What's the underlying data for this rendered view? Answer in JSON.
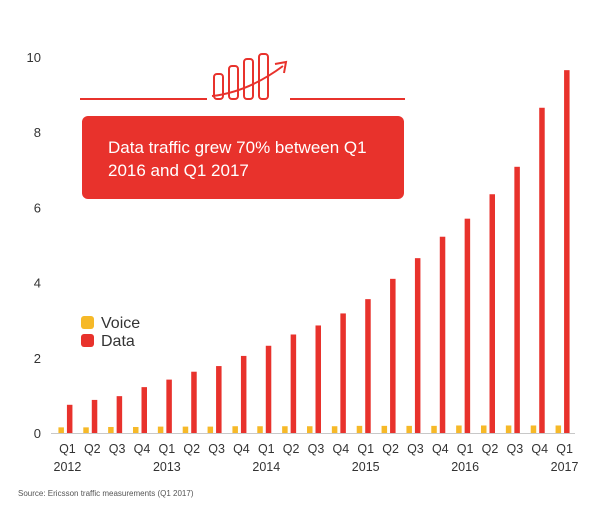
{
  "chart_data": {
    "type": "bar",
    "title": "",
    "xlabel": "",
    "ylabel": "",
    "ylim": [
      0,
      10
    ],
    "yticks": [
      0,
      2,
      4,
      6,
      8,
      10
    ],
    "categories": [
      "Q1",
      "Q2",
      "Q3",
      "Q4",
      "Q1",
      "Q2",
      "Q3",
      "Q4",
      "Q1",
      "Q2",
      "Q3",
      "Q4",
      "Q1",
      "Q2",
      "Q3",
      "Q4",
      "Q1",
      "Q2",
      "Q3",
      "Q4",
      "Q1"
    ],
    "year_labels": [
      {
        "index": 0,
        "label": "2012"
      },
      {
        "index": 4,
        "label": "2013"
      },
      {
        "index": 8,
        "label": "2014"
      },
      {
        "index": 12,
        "label": "2015"
      },
      {
        "index": 16,
        "label": "2016"
      },
      {
        "index": 20,
        "label": "2017"
      }
    ],
    "series": [
      {
        "name": "Voice",
        "color": "#f6b928",
        "values": [
          0.15,
          0.15,
          0.16,
          0.16,
          0.17,
          0.17,
          0.17,
          0.18,
          0.18,
          0.18,
          0.18,
          0.18,
          0.19,
          0.19,
          0.19,
          0.19,
          0.2,
          0.2,
          0.2,
          0.2,
          0.2
        ]
      },
      {
        "name": "Data",
        "color": "#e8322c",
        "values": [
          0.75,
          0.88,
          0.98,
          1.22,
          1.42,
          1.63,
          1.78,
          2.05,
          2.32,
          2.62,
          2.86,
          3.18,
          3.56,
          4.1,
          4.65,
          5.22,
          5.7,
          6.35,
          7.08,
          8.65,
          9.65
        ]
      }
    ],
    "legend_position": "middle-left",
    "annotation": "Data traffic grew 70% between Q1 2016 and Q1 2017",
    "source": "Source: Ericsson traffic measurements (Q1 2017)"
  },
  "icon": "growth-chart-icon",
  "colors": {
    "accent": "#e8322c",
    "voice": "#f6b928",
    "axis": "#c8c8c8"
  }
}
